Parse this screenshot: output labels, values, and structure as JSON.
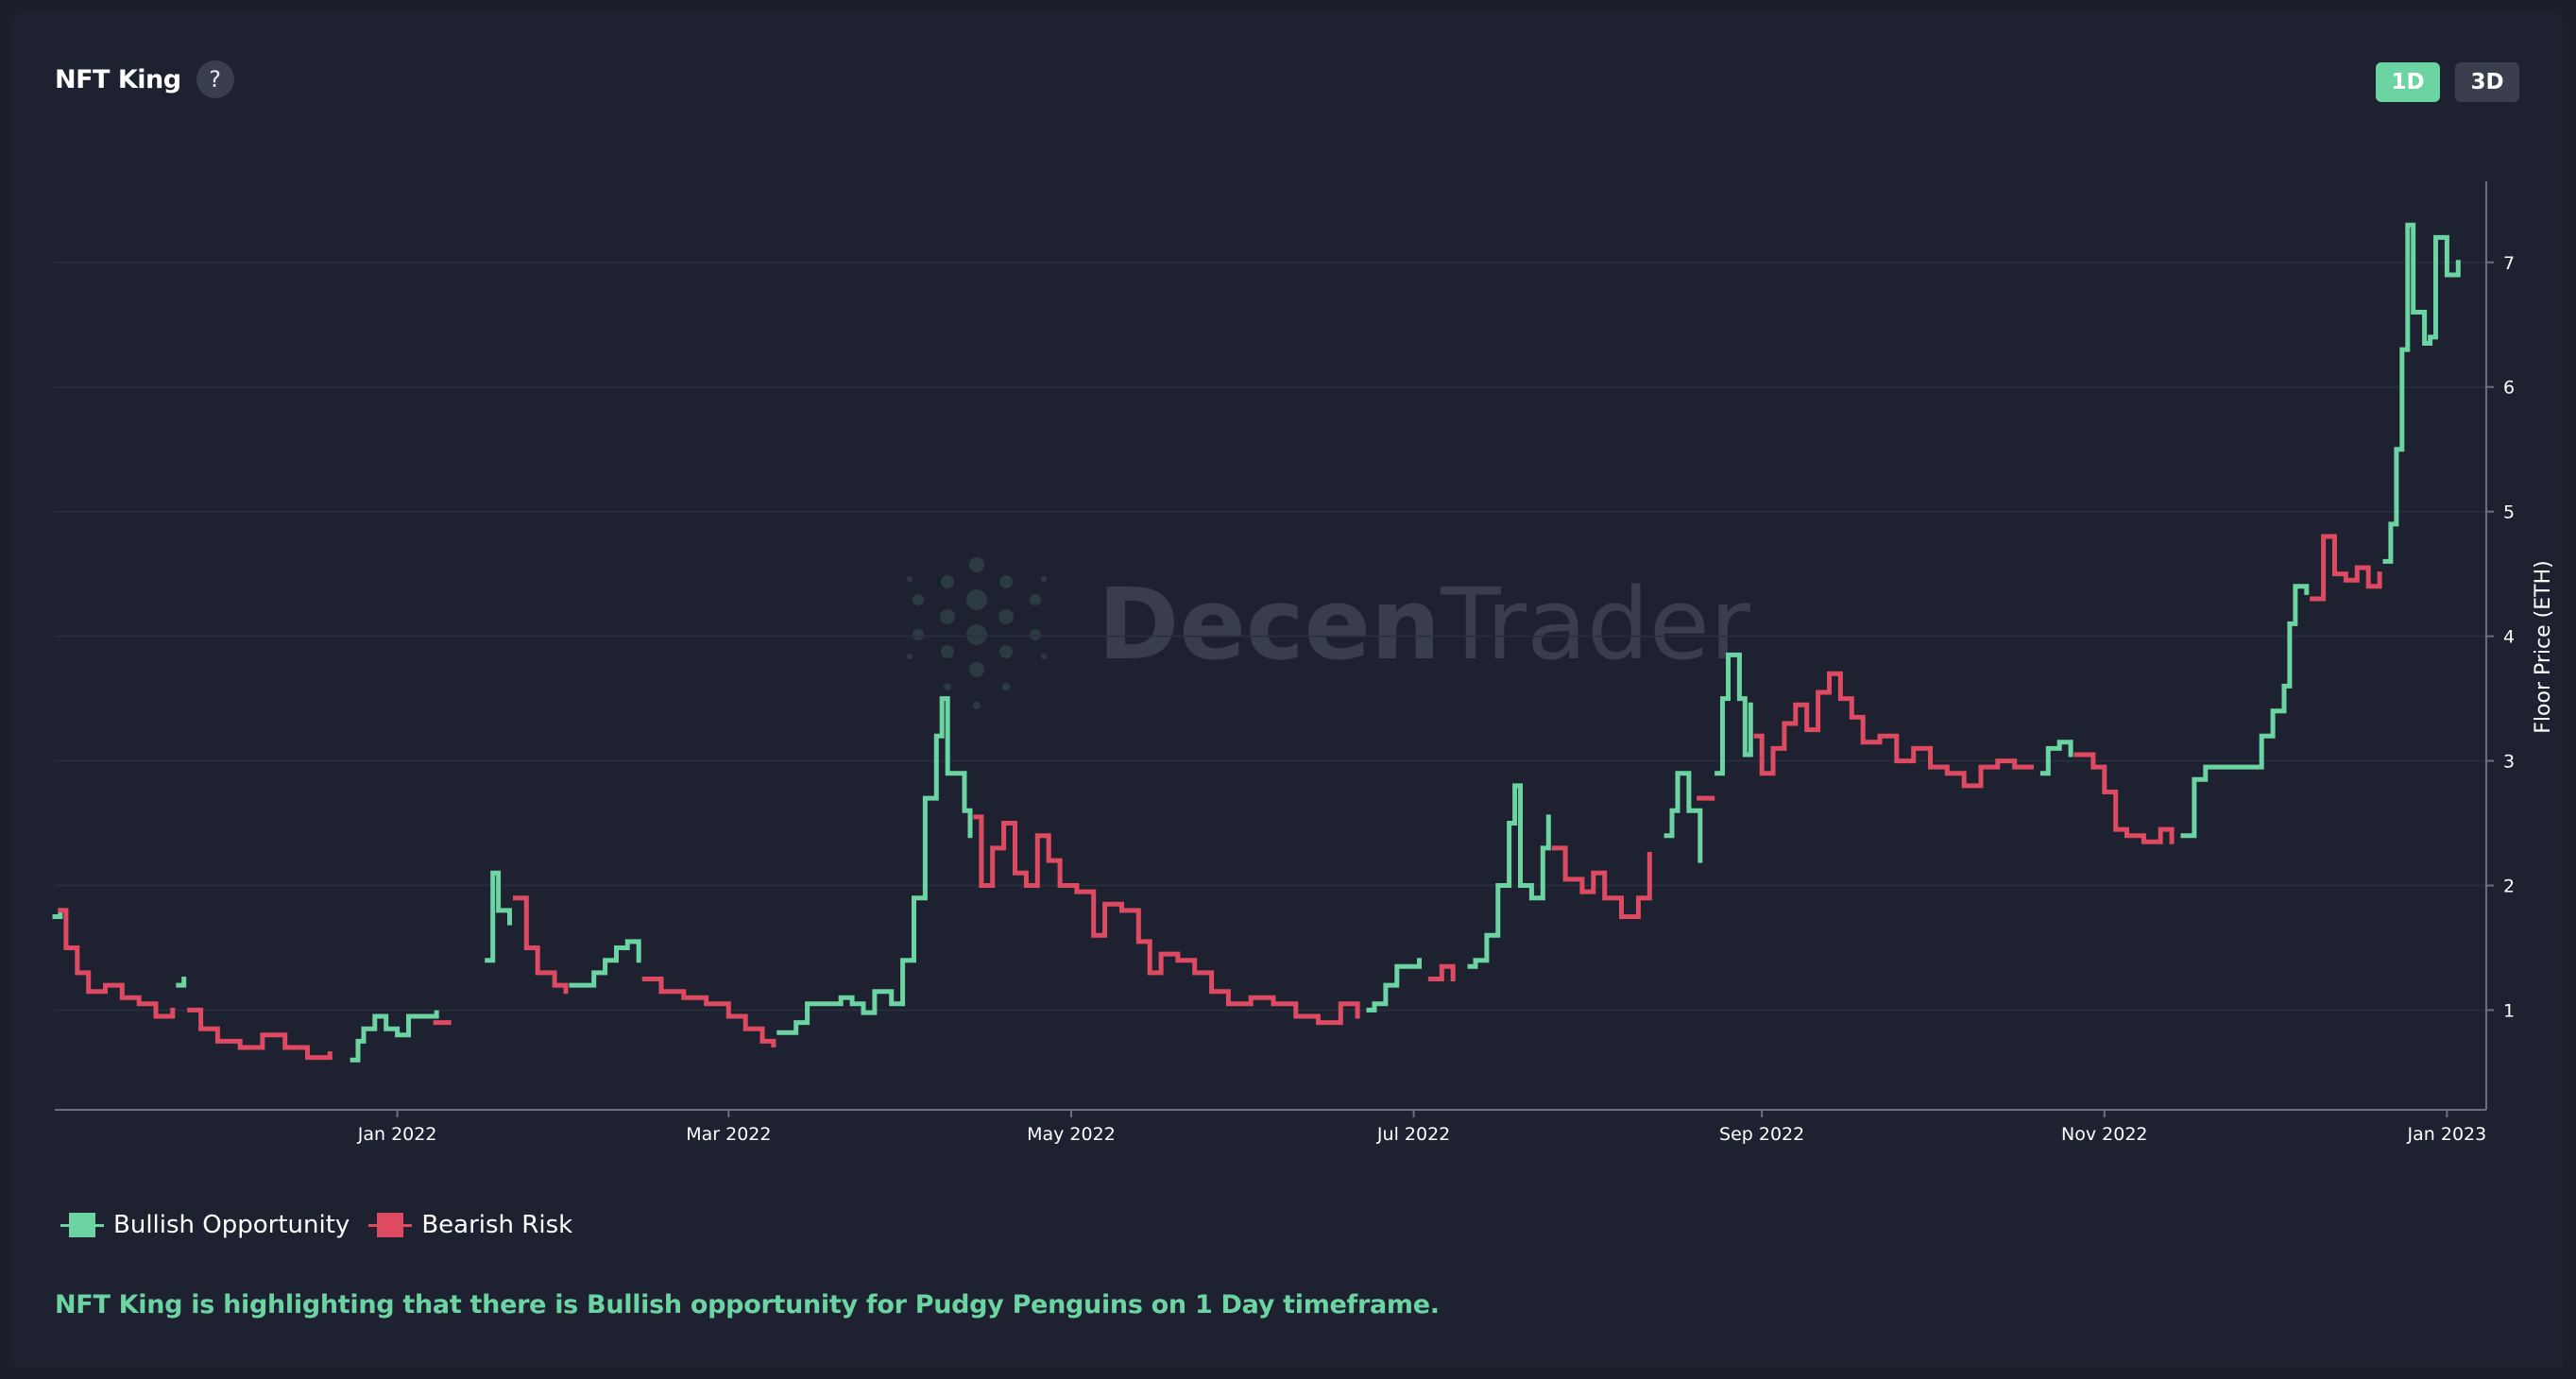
{
  "header": {
    "title": "NFT King",
    "help_icon_text": "?"
  },
  "timeframes": [
    {
      "label": "1D",
      "active": true
    },
    {
      "label": "3D",
      "active": false
    }
  ],
  "watermark": {
    "text_bold": "Decen",
    "text_light": "Trader"
  },
  "colors": {
    "bullish": "#6cd3a2",
    "bearish": "#de4a61",
    "background": "#1e2230"
  },
  "legend": [
    {
      "label": "Bullish Opportunity",
      "color": "#6cd3a2"
    },
    {
      "label": "Bearish Risk",
      "color": "#de4a61"
    }
  ],
  "summary": "NFT King is highlighting that there is Bullish opportunity for Pudgy Penguins on 1 Day timeframe.",
  "chart_data": {
    "type": "line",
    "title": "NFT King",
    "ylabel": "Floor Price (ETH)",
    "xlabel": "",
    "y_axis_side": "right",
    "ylim": [
      0.2,
      7.65
    ],
    "xlim": [
      "2021-11-01",
      "2023-01-08"
    ],
    "x_ticks": [
      {
        "date": "2022-01-01",
        "label": "Jan 2022"
      },
      {
        "date": "2022-03-01",
        "label": "Mar 2022"
      },
      {
        "date": "2022-05-01",
        "label": "May 2022"
      },
      {
        "date": "2022-07-01",
        "label": "Jul 2022"
      },
      {
        "date": "2022-09-01",
        "label": "Sep 2022"
      },
      {
        "date": "2022-11-01",
        "label": "Nov 2022"
      },
      {
        "date": "2023-01-01",
        "label": "Jan 2023"
      }
    ],
    "y_ticks": [
      1,
      2,
      3,
      4,
      5,
      6,
      7
    ],
    "grid": true,
    "legend_position": "bottom-left",
    "series": [
      {
        "name": "Bullish Opportunity",
        "color": "#6cd3a2",
        "segments": [
          [
            [
              "2021-11-01",
              1.75
            ],
            [
              "2021-11-02",
              1.8
            ]
          ],
          [
            [
              "2021-11-23",
              1.2
            ],
            [
              "2021-11-24",
              1.25
            ]
          ],
          [
            [
              "2021-12-24",
              0.6
            ],
            [
              "2021-12-25",
              0.75
            ],
            [
              "2021-12-26",
              0.85
            ],
            [
              "2021-12-28",
              0.95
            ],
            [
              "2021-12-30",
              0.85
            ],
            [
              "2022-01-01",
              0.8
            ],
            [
              "2022-01-03",
              0.95
            ],
            [
              "2022-01-08",
              0.98
            ]
          ],
          [
            [
              "2022-01-17",
              1.4
            ],
            [
              "2022-01-18",
              2.1
            ],
            [
              "2022-01-19",
              1.8
            ],
            [
              "2022-01-21",
              1.7
            ]
          ],
          [
            [
              "2022-02-01",
              1.2
            ],
            [
              "2022-02-05",
              1.3
            ],
            [
              "2022-02-07",
              1.4
            ],
            [
              "2022-02-09",
              1.5
            ],
            [
              "2022-02-11",
              1.55
            ],
            [
              "2022-02-13",
              1.4
            ]
          ],
          [
            [
              "2022-03-10",
              0.82
            ],
            [
              "2022-03-13",
              0.9
            ],
            [
              "2022-03-15",
              1.05
            ],
            [
              "2022-03-19",
              1.05
            ],
            [
              "2022-03-21",
              1.1
            ],
            [
              "2022-03-23",
              1.05
            ],
            [
              "2022-03-25",
              0.98
            ],
            [
              "2022-03-27",
              1.15
            ],
            [
              "2022-03-30",
              1.05
            ],
            [
              "2022-04-01",
              1.4
            ],
            [
              "2022-04-03",
              1.9
            ],
            [
              "2022-04-05",
              2.7
            ],
            [
              "2022-04-07",
              3.2
            ],
            [
              "2022-04-08",
              3.5
            ],
            [
              "2022-04-09",
              2.9
            ],
            [
              "2022-04-12",
              2.6
            ],
            [
              "2022-04-13",
              2.4
            ]
          ],
          [
            [
              "2022-06-23",
              1.0
            ],
            [
              "2022-06-24",
              1.05
            ],
            [
              "2022-06-26",
              1.2
            ],
            [
              "2022-06-28",
              1.35
            ],
            [
              "2022-06-30",
              1.35
            ],
            [
              "2022-07-02",
              1.4
            ]
          ],
          [
            [
              "2022-07-11",
              1.35
            ],
            [
              "2022-07-12",
              1.4
            ],
            [
              "2022-07-14",
              1.6
            ],
            [
              "2022-07-16",
              2.0
            ],
            [
              "2022-07-18",
              2.5
            ],
            [
              "2022-07-19",
              2.8
            ],
            [
              "2022-07-20",
              2.0
            ],
            [
              "2022-07-22",
              1.9
            ],
            [
              "2022-07-24",
              2.3
            ],
            [
              "2022-07-25",
              2.55
            ]
          ],
          [
            [
              "2022-08-15",
              2.4
            ],
            [
              "2022-08-16",
              2.6
            ],
            [
              "2022-08-17",
              2.9
            ],
            [
              "2022-08-19",
              2.6
            ],
            [
              "2022-08-21",
              2.2
            ]
          ],
          [
            [
              "2022-08-24",
              2.9
            ],
            [
              "2022-08-25",
              3.5
            ],
            [
              "2022-08-26",
              3.85
            ],
            [
              "2022-08-28",
              3.5
            ],
            [
              "2022-08-29",
              3.05
            ],
            [
              "2022-08-30",
              3.45
            ]
          ],
          [
            [
              "2022-10-21",
              2.9
            ],
            [
              "2022-10-22",
              3.1
            ],
            [
              "2022-10-24",
              3.15
            ],
            [
              "2022-10-26",
              3.05
            ]
          ],
          [
            [
              "2022-11-15",
              2.4
            ],
            [
              "2022-11-17",
              2.85
            ],
            [
              "2022-11-19",
              2.95
            ],
            [
              "2022-11-27",
              2.95
            ],
            [
              "2022-11-29",
              3.2
            ],
            [
              "2022-12-01",
              3.4
            ],
            [
              "2022-12-03",
              3.6
            ],
            [
              "2022-12-04",
              4.1
            ],
            [
              "2022-12-05",
              4.4
            ],
            [
              "2022-12-07",
              4.35
            ]
          ],
          [
            [
              "2022-12-21",
              4.6
            ],
            [
              "2022-12-22",
              4.9
            ],
            [
              "2022-12-23",
              5.5
            ],
            [
              "2022-12-24",
              6.3
            ],
            [
              "2022-12-25",
              7.3
            ],
            [
              "2022-12-26",
              6.6
            ],
            [
              "2022-12-28",
              6.35
            ],
            [
              "2022-12-29",
              6.4
            ],
            [
              "2022-12-30",
              7.2
            ],
            [
              "2023-01-01",
              6.9
            ],
            [
              "2023-01-03",
              7.0
            ]
          ]
        ]
      },
      {
        "name": "Bearish Risk",
        "color": "#de4a61",
        "segments": [
          [
            [
              "2021-11-02",
              1.8
            ],
            [
              "2021-11-03",
              1.5
            ],
            [
              "2021-11-05",
              1.3
            ],
            [
              "2021-11-07",
              1.15
            ],
            [
              "2021-11-10",
              1.2
            ],
            [
              "2021-11-13",
              1.1
            ],
            [
              "2021-11-16",
              1.05
            ],
            [
              "2021-11-19",
              0.95
            ],
            [
              "2021-11-22",
              1.0
            ]
          ],
          [
            [
              "2021-11-25",
              1.0
            ],
            [
              "2021-11-27",
              0.85
            ],
            [
              "2021-11-30",
              0.75
            ],
            [
              "2021-12-04",
              0.7
            ],
            [
              "2021-12-08",
              0.8
            ],
            [
              "2021-12-12",
              0.7
            ],
            [
              "2021-12-16",
              0.62
            ],
            [
              "2021-12-20",
              0.65
            ]
          ],
          [
            [
              "2022-01-09",
              0.9
            ]
          ],
          [
            [
              "2022-01-22",
              1.9
            ],
            [
              "2022-01-24",
              1.5
            ],
            [
              "2022-01-26",
              1.3
            ],
            [
              "2022-01-29",
              1.2
            ],
            [
              "2022-01-31",
              1.15
            ]
          ],
          [
            [
              "2022-02-14",
              1.25
            ],
            [
              "2022-02-17",
              1.15
            ],
            [
              "2022-02-21",
              1.1
            ],
            [
              "2022-02-25",
              1.05
            ],
            [
              "2022-03-01",
              0.95
            ],
            [
              "2022-03-04",
              0.85
            ],
            [
              "2022-03-07",
              0.75
            ],
            [
              "2022-03-09",
              0.72
            ]
          ],
          [
            [
              "2022-04-14",
              2.55
            ],
            [
              "2022-04-15",
              2.0
            ],
            [
              "2022-04-17",
              2.3
            ],
            [
              "2022-04-19",
              2.5
            ],
            [
              "2022-04-21",
              2.1
            ],
            [
              "2022-04-23",
              2.0
            ],
            [
              "2022-04-25",
              2.4
            ],
            [
              "2022-04-27",
              2.2
            ],
            [
              "2022-04-29",
              2.0
            ],
            [
              "2022-05-02",
              1.95
            ],
            [
              "2022-05-05",
              1.6
            ],
            [
              "2022-05-07",
              1.85
            ],
            [
              "2022-05-10",
              1.8
            ],
            [
              "2022-05-13",
              1.55
            ],
            [
              "2022-05-15",
              1.3
            ],
            [
              "2022-05-17",
              1.45
            ],
            [
              "2022-05-20",
              1.4
            ],
            [
              "2022-05-23",
              1.3
            ],
            [
              "2022-05-26",
              1.15
            ],
            [
              "2022-05-29",
              1.05
            ],
            [
              "2022-06-02",
              1.1
            ],
            [
              "2022-06-06",
              1.05
            ],
            [
              "2022-06-10",
              0.95
            ],
            [
              "2022-06-14",
              0.9
            ],
            [
              "2022-06-18",
              1.05
            ],
            [
              "2022-06-21",
              0.95
            ]
          ],
          [
            [
              "2022-07-04",
              1.25
            ],
            [
              "2022-07-06",
              1.35
            ],
            [
              "2022-07-08",
              1.25
            ]
          ],
          [
            [
              "2022-07-26",
              2.3
            ],
            [
              "2022-07-28",
              2.05
            ],
            [
              "2022-07-31",
              1.95
            ],
            [
              "2022-08-02",
              2.1
            ],
            [
              "2022-08-04",
              1.9
            ],
            [
              "2022-08-07",
              1.75
            ],
            [
              "2022-08-10",
              1.9
            ],
            [
              "2022-08-12",
              2.25
            ]
          ],
          [
            [
              "2022-08-22",
              2.7
            ]
          ],
          [
            [
              "2022-08-31",
              3.2
            ],
            [
              "2022-09-01",
              2.9
            ],
            [
              "2022-09-03",
              3.1
            ],
            [
              "2022-09-05",
              3.3
            ],
            [
              "2022-09-07",
              3.45
            ],
            [
              "2022-09-09",
              3.25
            ],
            [
              "2022-09-11",
              3.55
            ],
            [
              "2022-09-13",
              3.7
            ],
            [
              "2022-09-15",
              3.5
            ],
            [
              "2022-09-17",
              3.35
            ],
            [
              "2022-09-19",
              3.15
            ],
            [
              "2022-09-22",
              3.2
            ],
            [
              "2022-09-25",
              3.0
            ],
            [
              "2022-09-28",
              3.1
            ],
            [
              "2022-10-01",
              2.95
            ],
            [
              "2022-10-04",
              2.9
            ],
            [
              "2022-10-07",
              2.8
            ],
            [
              "2022-10-10",
              2.95
            ],
            [
              "2022-10-13",
              3.0
            ],
            [
              "2022-10-16",
              2.95
            ],
            [
              "2022-10-19",
              2.95
            ]
          ],
          [
            [
              "2022-10-27",
              3.05
            ],
            [
              "2022-10-30",
              2.95
            ],
            [
              "2022-11-01",
              2.75
            ],
            [
              "2022-11-03",
              2.45
            ],
            [
              "2022-11-05",
              2.4
            ],
            [
              "2022-11-08",
              2.35
            ],
            [
              "2022-11-11",
              2.45
            ],
            [
              "2022-11-13",
              2.35
            ]
          ],
          [
            [
              "2022-12-08",
              4.3
            ],
            [
              "2022-12-10",
              4.8
            ],
            [
              "2022-12-12",
              4.5
            ],
            [
              "2022-12-14",
              4.45
            ],
            [
              "2022-12-16",
              4.55
            ],
            [
              "2022-12-18",
              4.4
            ],
            [
              "2022-12-20",
              4.5
            ]
          ]
        ]
      }
    ]
  }
}
